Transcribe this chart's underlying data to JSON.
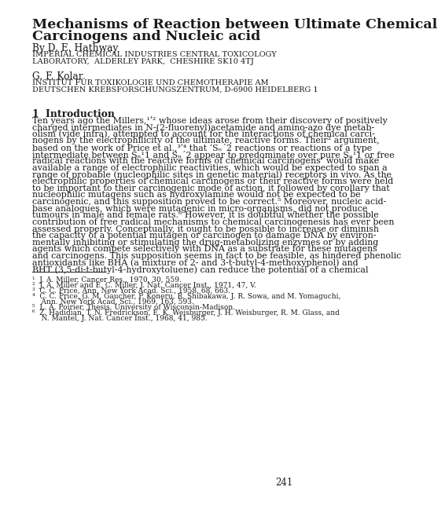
{
  "title_line1": "Mechanisms of Reaction between Ultimate Chemical",
  "title_line2": "Carcinogens and Nucleic acid",
  "author1_name": "By D. E. Hathway",
  "author1_inst1": "IMPERIAL CHEMICAL INDUSTRIES CENTRAL TOXICOLOGY",
  "author1_inst2": "LABORATORY,  ALDERLEY PARK,  CHESHIRE SK10 4TJ",
  "author2_name": "G. F. Kolar",
  "author2_inst1": "INSTITUT FÜR TOXIKOLOGIE UND CHEMOTHERAPIE AM",
  "author2_inst2": "DEUTSCHEN KREBSFORSCHUNGSZENTRUM, D-6900 HEIDELBERG 1",
  "section_title": "1  Introduction",
  "body_lines": [
    "Ten years ago the Millers,¹ʹ² whose ideas arose from their discovery of positively",
    "charged intermediates in N-(2-fluorenyl)acetamide and amino-azo dye metab-",
    "olism (vide infra), attempted to account for the interactions of chemical carci-",
    "nogens by the electrophilicity of the ultimate, reactive forms. Their² argument,",
    "based on the work of Price et al.,³ʹ⁴ that ‘Sₙ´2 reactions or reactions of a type",
    "intermediate between Sₙ¹1 and Sₙ´2 appear to predominate over pure Sₙ¹1 or free",
    "radical reactions with the reactive forms of chemical carcinogens’ would make",
    "available a range of electrophilic reactivities, which would be expected to span a",
    "range of probable (nucleophilic sites in genetic material) receptors in vivo. As the",
    "electrophilic properties of chemical carcinogens or their reactive forms were held",
    "to be important to their carcinogenic mode of action, it followed by corollary that",
    "nucleophilic mutagens such as hydroxylamine would not be expected to be",
    "carcinogenic, and this supposition proved to be correct.⁵ Moreover, nucleic acid-",
    "base analogues, which were mutagenic in micro-organisms, did not produce",
    "tumours in male and female rats.⁶ However, it is doubtful whether the possible",
    "contribution of free radical mechanisms to chemical carcinogenesis has ever been",
    "assessed properly. Conceptually, it ought to be possible to increase or diminish",
    "the capacity of a potential mutagen or carcinogen to damage DNA by environ-",
    "mentally inhibiting or stimulating the drug-metabolizing enzymes or by adding",
    "agents which compete selectively with DNA as a substrate for these mutagens",
    "and carcinogens. This supposition seems in fact to be feasible, as hindered phenolic",
    "antioxidants like BHA (a mixture of 2- and 3-t-butyl-4-methoxyphenol) and",
    "BHT (3,5-di-t-butyl-4-hydroxytoluene) can reduce the potential of a chemical"
  ],
  "footnote_lines": [
    "¹  J. A. Miller, Cancer Res., 1970, 30, 559.",
    "²  J. A. Miller and E. C. Miller, J. Nat. Cancer Inst., 1971, 47, V.",
    "³  C. C. Price, Ann. New York Acad. Sci., 1958, 68, 663.",
    "⁴  C. C. Price, G. M. Gaucher, P. Koneru, R. Shibakawa, J. R. Sowa, and M. Yomaguchi,",
    "    Ann. New York Acad. Sci., 1969, 163, 593.",
    "⁵  L. A. Poirier, Thesis, University of Wisconsin-Madison.",
    "⁶  Z. Hadidian, T. N. Fredrickson, E. K. Weisburger, J. H. Weisburger, R. M. Glass, and",
    "    N. Mantel, J. Nat. Cancer Inst., 1968, 41, 985."
  ],
  "page_number": "241",
  "background_color": "#ffffff",
  "text_color": "#1a1a1a"
}
